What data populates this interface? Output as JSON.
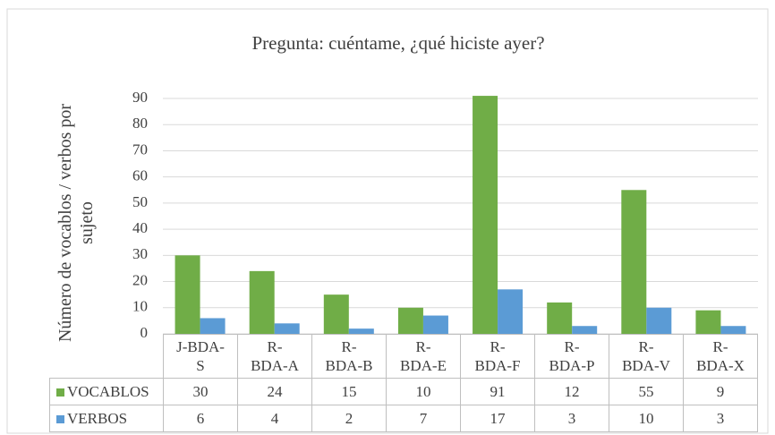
{
  "chart_data": {
    "type": "bar",
    "title": "Pregunta: cuéntame, ¿qué hiciste ayer?",
    "y_label": "Número de vocablos / verbos por sujeto",
    "categories": [
      "J-BDA-S",
      "R-BDA-A",
      "R-BDA-B",
      "R-BDA-E",
      "R-BDA-F",
      "R-BDA-P",
      "R-BDA-V",
      "R-BDA-X"
    ],
    "series": [
      {
        "name": "VOCABLOS",
        "color": "#70ad47",
        "values": [
          30,
          24,
          15,
          10,
          91,
          12,
          55,
          9
        ]
      },
      {
        "name": "VERBOS",
        "color": "#5b9bd5",
        "values": [
          6,
          4,
          2,
          7,
          17,
          3,
          10,
          3
        ]
      }
    ],
    "ylim": [
      0,
      90
    ],
    "yticks": [
      0,
      10,
      20,
      30,
      40,
      50,
      60,
      70,
      80,
      90
    ],
    "grid": true,
    "data_table": true
  }
}
